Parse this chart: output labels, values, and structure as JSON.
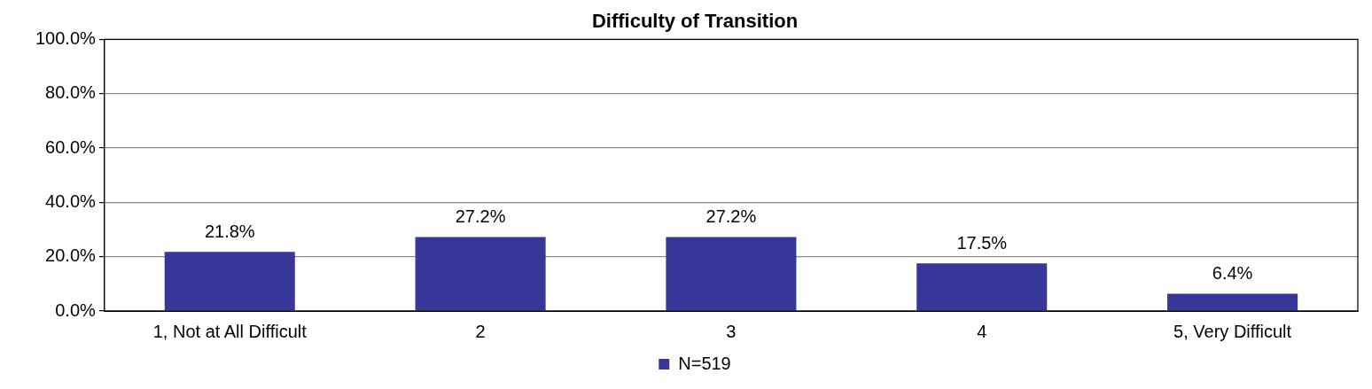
{
  "chart_data": {
    "type": "bar",
    "title": "Difficulty of Transition",
    "categories": [
      "1, Not at All Difficult",
      "2",
      "3",
      "4",
      "5, Very Difficult"
    ],
    "series": [
      {
        "name": "N=519",
        "color": "#373699",
        "values": [
          21.8,
          27.2,
          27.2,
          17.5,
          6.4
        ],
        "value_labels": [
          "21.8%",
          "27.2%",
          "27.2%",
          "17.5%",
          "6.4%"
        ]
      }
    ],
    "ylim": [
      0,
      100
    ],
    "yticks": [
      {
        "value": 0,
        "label": "0.0%"
      },
      {
        "value": 20,
        "label": "20.0%"
      },
      {
        "value": 40,
        "label": "40.0%"
      },
      {
        "value": 60,
        "label": "60.0%"
      },
      {
        "value": 80,
        "label": "80.0%"
      },
      {
        "value": 100,
        "label": "100.0%"
      }
    ],
    "grid": "y",
    "legend": "bottom"
  }
}
